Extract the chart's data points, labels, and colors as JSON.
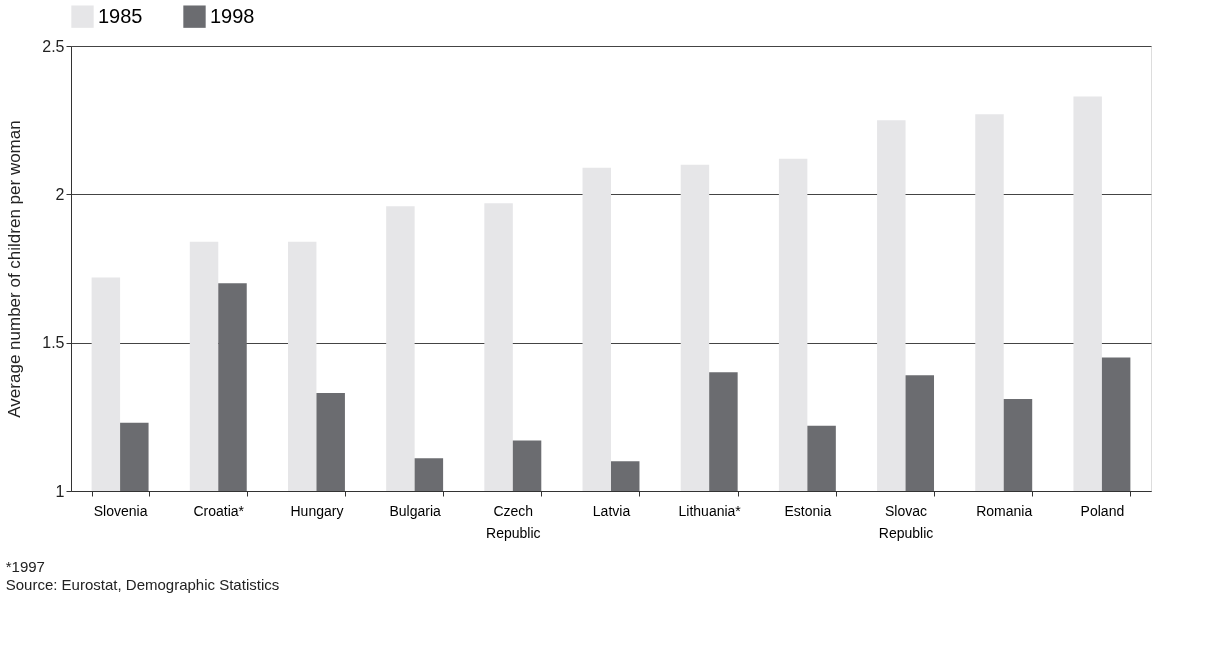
{
  "chart_data": {
    "type": "bar",
    "ylabel": "Average number of children per woman",
    "categories": [
      "Slovenia",
      "Croatia*",
      "Hungary",
      "Bulgaria",
      "Czech Republic",
      "Latvia",
      "Lithuania*",
      "Estonia",
      "Slovac Republic",
      "Romania",
      "Poland"
    ],
    "series": [
      {
        "name": "1985",
        "color": "#e6e6e8",
        "values": [
          1.72,
          1.84,
          1.84,
          1.96,
          1.97,
          2.09,
          2.1,
          2.12,
          2.25,
          2.27,
          2.33
        ]
      },
      {
        "name": "1998",
        "color": "#6b6c70",
        "values": [
          1.23,
          1.7,
          1.33,
          1.11,
          1.17,
          1.1,
          1.4,
          1.22,
          1.39,
          1.31,
          1.45
        ]
      }
    ],
    "ylim": [
      1,
      2.5
    ],
    "yticks": [
      1,
      1.5,
      2,
      2.5
    ],
    "grid": "y",
    "legend": "top",
    "annotations": [
      "*1997",
      "Source: Eurostat, Demographic Statistics"
    ]
  }
}
